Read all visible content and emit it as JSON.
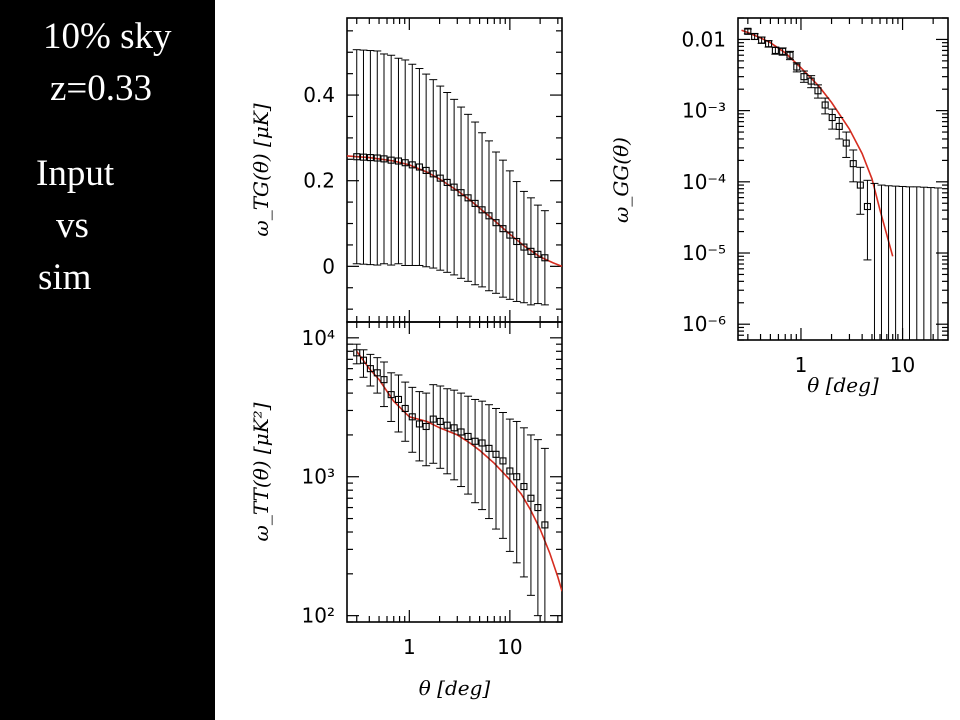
{
  "sidebar": {
    "line1": "10% sky",
    "line2": "z=0.33",
    "line3": "Input",
    "line4": "vs",
    "line5": "sim"
  },
  "colors": {
    "model": "#d62d20",
    "data": "#000000",
    "sidebar_bg": "#000000"
  },
  "chart_data": [
    {
      "id": "wTG",
      "type": "line",
      "ylabel": "ω_TG(θ) [μK]",
      "xlabel": "",
      "xscale": "log",
      "xlim": [
        0.24,
        33
      ],
      "yscale": "linear",
      "ylim": [
        -0.13,
        0.58
      ],
      "yticks": [
        {
          "v": 0,
          "label": "0"
        },
        {
          "v": 0.2,
          "label": "0.2"
        },
        {
          "v": 0.4,
          "label": "0.4"
        }
      ],
      "xticks": [
        {
          "v": 1,
          "label": ""
        },
        {
          "v": 10,
          "label": ""
        }
      ],
      "series": [
        {
          "kind": "model",
          "x": [
            0.24,
            0.3,
            0.4,
            0.5,
            0.7,
            1,
            1.5,
            2,
            3,
            4,
            5,
            7,
            10,
            14,
            20,
            27,
            33
          ],
          "y": [
            0.258,
            0.256,
            0.254,
            0.251,
            0.246,
            0.237,
            0.22,
            0.204,
            0.177,
            0.155,
            0.136,
            0.107,
            0.075,
            0.047,
            0.022,
            0.008,
            0.0
          ]
        },
        {
          "kind": "data",
          "x": [
            0.3,
            0.35,
            0.41,
            0.48,
            0.56,
            0.66,
            0.78,
            0.91,
            1.07,
            1.26,
            1.47,
            1.73,
            2.03,
            2.38,
            2.79,
            3.27,
            3.84,
            4.51,
            5.29,
            6.2,
            7.28,
            8.54,
            10.0,
            11.7,
            13.8,
            16.2,
            19.0,
            22.3
          ],
          "y": [
            0.256,
            0.255,
            0.254,
            0.253,
            0.251,
            0.248,
            0.246,
            0.242,
            0.237,
            0.232,
            0.224,
            0.216,
            0.206,
            0.196,
            0.185,
            0.172,
            0.16,
            0.147,
            0.132,
            0.118,
            0.102,
            0.088,
            0.073,
            0.058,
            0.045,
            0.035,
            0.028,
            0.02
          ],
          "err": [
            0.25,
            0.25,
            0.25,
            0.25,
            0.245,
            0.245,
            0.24,
            0.24,
            0.235,
            0.23,
            0.225,
            0.22,
            0.215,
            0.21,
            0.205,
            0.2,
            0.195,
            0.19,
            0.18,
            0.175,
            0.165,
            0.16,
            0.15,
            0.14,
            0.13,
            0.125,
            0.115,
            0.11
          ]
        }
      ]
    },
    {
      "id": "wTT",
      "type": "line",
      "ylabel": "ω_TT(θ) [μK²]",
      "xlabel": "θ [deg]",
      "xscale": "log",
      "xlim": [
        0.24,
        33
      ],
      "yscale": "log",
      "ylim": [
        90,
        13000
      ],
      "yticks": [
        {
          "v": 100,
          "label": "10²"
        },
        {
          "v": 1000,
          "label": "10³"
        },
        {
          "v": 10000,
          "label": "10⁴"
        }
      ],
      "xticks": [
        {
          "v": 1,
          "label": "1"
        },
        {
          "v": 10,
          "label": "10"
        }
      ],
      "series": [
        {
          "kind": "model",
          "x": [
            0.3,
            0.4,
            0.5,
            0.7,
            1,
            1.5,
            2,
            3,
            4,
            5,
            7,
            10,
            13,
            16,
            20,
            25,
            30,
            33
          ],
          "y": [
            8000,
            6000,
            5000,
            3500,
            2700,
            2500,
            2250,
            2000,
            1750,
            1550,
            1250,
            950,
            750,
            580,
            420,
            280,
            190,
            150
          ]
        },
        {
          "kind": "data",
          "x": [
            0.3,
            0.35,
            0.41,
            0.48,
            0.56,
            0.66,
            0.78,
            0.91,
            1.07,
            1.26,
            1.47,
            1.73,
            2.03,
            2.38,
            2.79,
            3.27,
            3.84,
            4.51,
            5.29,
            6.2,
            7.28,
            8.54,
            10.0,
            11.7,
            13.8,
            16.2,
            19.0,
            22.3
          ],
          "y": [
            7800,
            6900,
            6000,
            5600,
            5000,
            3900,
            3600,
            3100,
            2700,
            2400,
            2300,
            2600,
            2500,
            2350,
            2250,
            2100,
            1950,
            1800,
            1750,
            1600,
            1450,
            1300,
            1100,
            1000,
            850,
            700,
            600,
            450
          ],
          "lo": [
            6500,
            5200,
            4500,
            4000,
            3200,
            2500,
            2100,
            1800,
            1500,
            1300,
            1200,
            1250,
            1150,
            1050,
            950,
            850,
            750,
            650,
            580,
            500,
            420,
            360,
            290,
            240,
            190,
            140,
            100,
            90
          ],
          "hi": [
            9000,
            8200,
            7600,
            7200,
            6700,
            5600,
            5400,
            4800,
            4400,
            4100,
            4000,
            4600,
            4500,
            4300,
            4200,
            4000,
            3800,
            3600,
            3500,
            3300,
            3100,
            2900,
            2600,
            2500,
            2250,
            2000,
            1850,
            1600
          ]
        }
      ]
    },
    {
      "id": "wGG",
      "type": "line",
      "ylabel": "ω_GG(θ)",
      "xlabel": "θ [deg]",
      "xscale": "log",
      "xlim": [
        0.24,
        28
      ],
      "yscale": "log",
      "ylim": [
        6e-07,
        0.02
      ],
      "yticks": [
        {
          "v": 1e-06,
          "label": "10⁻⁶"
        },
        {
          "v": 1e-05,
          "label": "10⁻⁵"
        },
        {
          "v": 0.0001,
          "label": "10⁻⁴"
        },
        {
          "v": 0.001,
          "label": "10⁻³"
        },
        {
          "v": 0.01,
          "label": "0.01"
        }
      ],
      "xticks": [
        {
          "v": 1,
          "label": "1"
        },
        {
          "v": 10,
          "label": "10"
        }
      ],
      "series": [
        {
          "kind": "model",
          "x": [
            0.26,
            0.3,
            0.4,
            0.5,
            0.7,
            1,
            1.5,
            2,
            3,
            4,
            5,
            6,
            7,
            8
          ],
          "y": [
            0.0135,
            0.0125,
            0.0105,
            0.009,
            0.0065,
            0.004,
            0.0022,
            0.0013,
            0.00055,
            0.00025,
            0.00011,
            4e-05,
            1.8e-05,
            9e-06
          ]
        },
        {
          "kind": "data",
          "x": [
            0.3,
            0.35,
            0.41,
            0.48,
            0.56,
            0.66,
            0.78,
            0.91,
            1.07,
            1.26,
            1.47,
            1.73,
            2.03,
            2.38,
            2.79,
            3.27,
            3.84,
            4.51,
            5.29,
            6.2,
            7.28,
            8.54,
            10.0,
            11.7,
            13.8,
            16.2,
            19.0,
            22.3
          ],
          "y": [
            0.013,
            0.011,
            0.0098,
            0.0087,
            0.007,
            0.0068,
            0.006,
            0.0041,
            0.003,
            0.0026,
            0.0019,
            0.0012,
            0.0008,
            0.0006,
            0.00035,
            0.00018,
            9e-05,
            4.5e-05,
            null,
            null,
            null,
            null,
            null,
            null,
            null,
            null,
            null,
            null
          ],
          "lo": [
            0.012,
            0.01,
            0.0088,
            0.0078,
            0.0062,
            0.006,
            0.0052,
            0.0035,
            0.0025,
            0.0021,
            0.0015,
            0.0009,
            0.00055,
            0.0004,
            0.00022,
            0.0001,
            3.5e-05,
            8e-06,
            6e-07,
            6e-07,
            6e-07,
            6e-07,
            6e-07,
            6e-07,
            6e-07,
            6e-07,
            6e-07,
            6e-07
          ],
          "hi": [
            0.014,
            0.012,
            0.0108,
            0.0096,
            0.0078,
            0.0076,
            0.0068,
            0.0047,
            0.0036,
            0.0031,
            0.0023,
            0.0015,
            0.00105,
            0.0008,
            0.0005,
            0.00028,
            0.00016,
            0.000105,
            9.5e-05,
            9e-05,
            8.8e-05,
            8.7e-05,
            8.6e-05,
            8.5e-05,
            8.5e-05,
            8.4e-05,
            8.3e-05,
            8.2e-05
          ]
        }
      ]
    }
  ]
}
